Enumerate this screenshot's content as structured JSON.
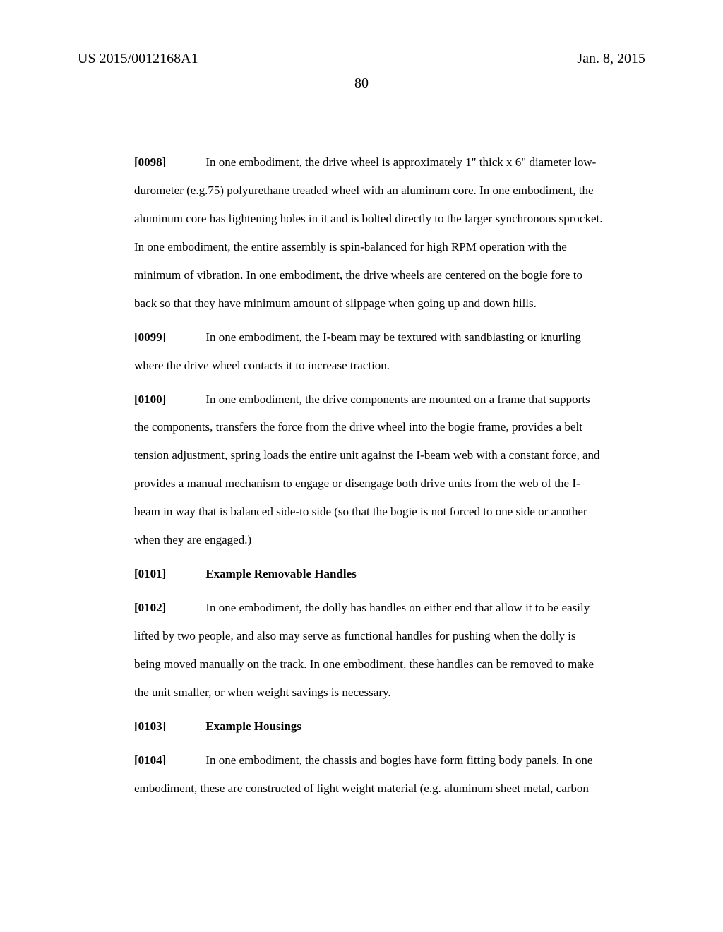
{
  "header": {
    "pub_no": "US 2015/0012168A1",
    "date": "Jan. 8, 2015",
    "page_number": "80"
  },
  "paras": {
    "p0098": {
      "num": "[0098]",
      "text": "In one embodiment, the drive wheel is approximately 1\" thick x 6\" diameter low-durometer (e.g.75) polyurethane treaded wheel with an aluminum core.  In one embodiment, the aluminum core has lightening holes in it and is bolted directly to the larger synchronous sprocket.  In one embodiment, the entire assembly is spin-balanced for high RPM operation with the minimum of vibration.  In one embodiment, the drive wheels are centered on the bogie fore to back so that they have minimum amount of slippage when going up and down hills."
    },
    "p0099": {
      "num": "[0099]",
      "text": "In one embodiment, the I-beam may be textured with sandblasting or knurling where the drive wheel contacts it to increase traction."
    },
    "p0100": {
      "num": "[0100]",
      "text": "In one embodiment, the drive components are mounted on a frame that supports the components, transfers the force from the drive wheel into the bogie frame, provides a belt tension adjustment, spring loads the entire unit against the I-beam web with a constant force, and provides a manual mechanism to engage or disengage both drive units from the web of the I-beam in way that is balanced side-to side (so that the bogie is not forced to one side or another when they are engaged.)"
    },
    "p0101": {
      "num": "[0101]",
      "heading": "Example Removable Handles"
    },
    "p0102": {
      "num": "[0102]",
      "text": "In one embodiment, the dolly has handles on either end that allow it to be easily lifted by two people, and also may serve as functional handles for pushing when the dolly is being moved manually on the track.  In one embodiment, these handles can be removed to make the unit smaller, or when weight savings is necessary."
    },
    "p0103": {
      "num": "[0103]",
      "heading": "Example Housings"
    },
    "p0104": {
      "num": "[0104]",
      "text": "In one embodiment, the chassis and bogies have form fitting body panels.  In one embodiment, these are constructed of light weight material (e.g. aluminum sheet metal, carbon"
    }
  }
}
